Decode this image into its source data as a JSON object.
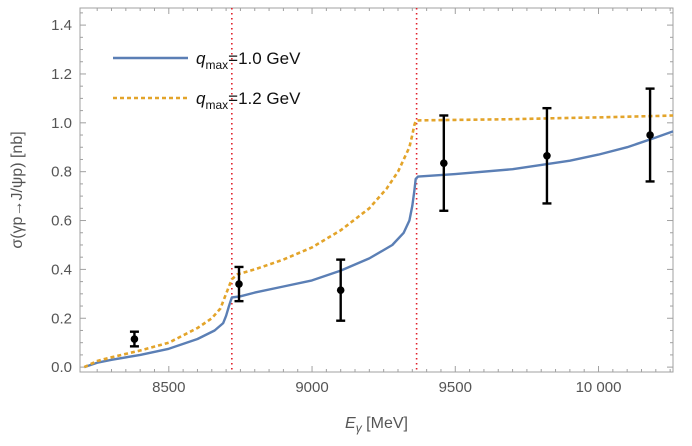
{
  "chart_data": {
    "type": "line",
    "xlabel_main": "E",
    "xlabel_sub": "γ",
    "xlabel_unit": " [MeV]",
    "ylabel": "σ(γp→J/ψp) [nb]",
    "xlim": [
      8190,
      10260
    ],
    "ylim": [
      -0.02,
      1.47
    ],
    "xticks": [
      {
        "value": 8500,
        "label": "8500"
      },
      {
        "value": 9000,
        "label": "9000"
      },
      {
        "value": 9500,
        "label": "9500"
      },
      {
        "value": 10000,
        "label": "10 000"
      }
    ],
    "yticks": [
      {
        "value": 0.0,
        "label": "0.0"
      },
      {
        "value": 0.2,
        "label": "0.2"
      },
      {
        "value": 0.4,
        "label": "0.4"
      },
      {
        "value": 0.6,
        "label": "0.6"
      },
      {
        "value": 0.8,
        "label": "0.8"
      },
      {
        "value": 1.0,
        "label": "1.0"
      },
      {
        "value": 1.2,
        "label": "1.2"
      },
      {
        "value": 1.4,
        "label": "1.4"
      }
    ],
    "legend_position": "top-left",
    "series": [
      {
        "name_main": "q",
        "name_sub": "max",
        "name_rest": "=1.0 GeV",
        "color": "#5b7fb5",
        "style": "solid",
        "x": [
          8205,
          8250,
          8300,
          8400,
          8500,
          8600,
          8660,
          8690,
          8700,
          8710,
          8720,
          8750,
          8800,
          8900,
          9000,
          9100,
          9200,
          9280,
          9320,
          9340,
          9350,
          9357,
          9362,
          9370,
          9500,
          9700,
          9900,
          10000,
          10100,
          10200,
          10260
        ],
        "y": [
          0.0,
          0.018,
          0.03,
          0.05,
          0.075,
          0.115,
          0.15,
          0.18,
          0.21,
          0.25,
          0.285,
          0.29,
          0.305,
          0.33,
          0.355,
          0.395,
          0.445,
          0.5,
          0.55,
          0.6,
          0.66,
          0.72,
          0.77,
          0.78,
          0.79,
          0.81,
          0.845,
          0.87,
          0.9,
          0.94,
          0.965
        ]
      },
      {
        "name_main": "q",
        "name_sub": "max",
        "name_rest": "=1.2 GeV",
        "color": "#e3a42a",
        "style": "dashed",
        "x": [
          8205,
          8250,
          8300,
          8400,
          8500,
          8600,
          8650,
          8680,
          8700,
          8720,
          8740,
          8800,
          8900,
          9000,
          9100,
          9200,
          9260,
          9300,
          9320,
          9340,
          9350,
          9357,
          9362,
          9370,
          9500,
          9700,
          9900,
          10000,
          10100,
          10200,
          10260
        ],
        "y": [
          0.0,
          0.025,
          0.04,
          0.068,
          0.1,
          0.16,
          0.2,
          0.24,
          0.3,
          0.36,
          0.38,
          0.4,
          0.44,
          0.49,
          0.56,
          0.65,
          0.73,
          0.8,
          0.85,
          0.9,
          0.95,
          0.99,
          1.008,
          1.01,
          1.012,
          1.015,
          1.02,
          1.022,
          1.025,
          1.028,
          1.03
        ]
      }
    ],
    "data_points": [
      {
        "x": 8380,
        "y": 0.115,
        "err": 0.03
      },
      {
        "x": 8745,
        "y": 0.34,
        "err": 0.07
      },
      {
        "x": 9100,
        "y": 0.315,
        "err": 0.125
      },
      {
        "x": 9460,
        "y": 0.835,
        "err": 0.195
      },
      {
        "x": 9820,
        "y": 0.865,
        "err": 0.195
      },
      {
        "x": 10180,
        "y": 0.95,
        "err": 0.19
      }
    ],
    "thresholds": [
      8720,
      9365
    ],
    "threshold_color": "#e0202a",
    "frame_color": "#a0a0a0"
  }
}
